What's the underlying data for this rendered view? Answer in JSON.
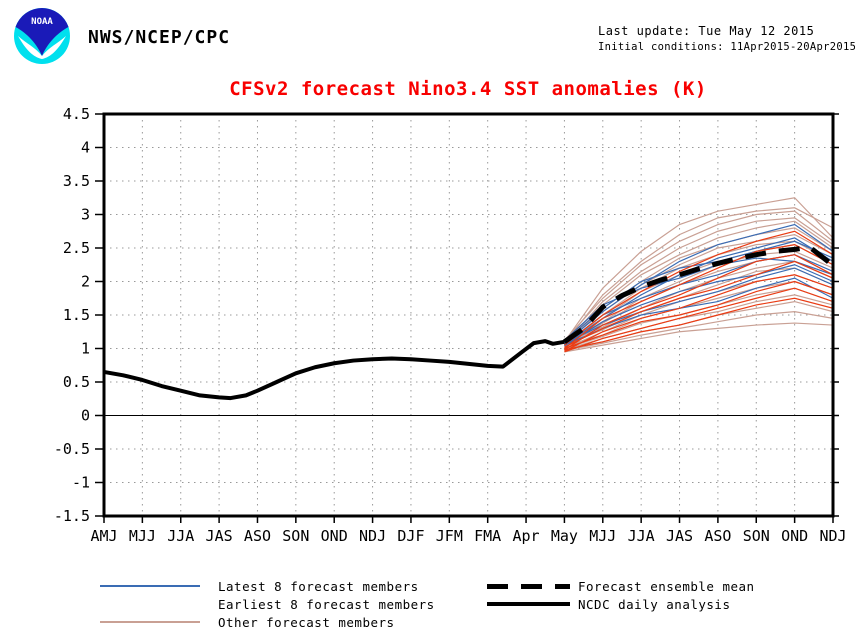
{
  "header": {
    "agency": "NWS/NCEP/CPC",
    "last_update": "Last update: Tue May 12 2015",
    "initial_conditions": "Initial conditions: 11Apr2015-20Apr2015",
    "logo_text": "NOAA",
    "logo_colors": {
      "blue": "#1a1ab8",
      "cyan": "#00e0ee"
    }
  },
  "title": "CFSv2 forecast Nino3.4 SST anomalies (K)",
  "title_color": "#f80000",
  "chart_data": {
    "type": "line",
    "title": "CFSv2 forecast Nino3.4 SST anomalies (K)",
    "xlabel": "",
    "ylabel": "",
    "x_labels": [
      "AMJ",
      "MJJ",
      "JJA",
      "JAS",
      "ASO",
      "SON",
      "OND",
      "NDJ",
      "DJF",
      "JFM",
      "FMA",
      "Apr",
      "May",
      "MJJ",
      "JJA",
      "JAS",
      "ASO",
      "SON",
      "OND",
      "NDJ"
    ],
    "ylim": [
      -1.5,
      4.5
    ],
    "ytick_step": 0.5,
    "grid": true,
    "zero_line": true,
    "forecast_start_index": 12,
    "axis_color": "#000000",
    "grid_color": "#999999",
    "member_colors": {
      "latest": "#3a6cb4",
      "earliest": "#ea3c14",
      "other": "#c9a094"
    },
    "series": {
      "ncdc_daily_analysis": {
        "name": "NCDC daily analysis",
        "color": "#000000",
        "style": "solid-thick",
        "points": [
          [
            0,
            0.65
          ],
          [
            0.5,
            0.6
          ],
          [
            1,
            0.53
          ],
          [
            1.5,
            0.44
          ],
          [
            2,
            0.37
          ],
          [
            2.5,
            0.3
          ],
          [
            3,
            0.27
          ],
          [
            3.3,
            0.26
          ],
          [
            3.7,
            0.3
          ],
          [
            4,
            0.37
          ],
          [
            4.5,
            0.5
          ],
          [
            5,
            0.63
          ],
          [
            5.5,
            0.72
          ],
          [
            6,
            0.78
          ],
          [
            6.5,
            0.82
          ],
          [
            7,
            0.84
          ],
          [
            7.5,
            0.85
          ],
          [
            8,
            0.84
          ],
          [
            8.5,
            0.82
          ],
          [
            9,
            0.8
          ],
          [
            9.5,
            0.77
          ],
          [
            10,
            0.74
          ],
          [
            10.4,
            0.73
          ],
          [
            10.9,
            0.95
          ],
          [
            11.2,
            1.08
          ],
          [
            11.5,
            1.11
          ],
          [
            11.7,
            1.07
          ],
          [
            12,
            1.1
          ]
        ]
      },
      "forecast_ensemble_mean": {
        "name": "Forecast ensemble mean",
        "color": "#000000",
        "style": "dashed-thick",
        "points": [
          [
            12,
            1.1
          ],
          [
            12.5,
            1.3
          ],
          [
            13,
            1.62
          ],
          [
            13.5,
            1.79
          ],
          [
            14,
            1.92
          ],
          [
            14.5,
            2.02
          ],
          [
            15,
            2.1
          ],
          [
            15.5,
            2.19
          ],
          [
            16,
            2.27
          ],
          [
            16.5,
            2.34
          ],
          [
            17,
            2.4
          ],
          [
            17.5,
            2.45
          ],
          [
            18,
            2.48
          ],
          [
            18.4,
            2.51
          ],
          [
            19,
            2.24
          ]
        ]
      },
      "member_x": [
        12,
        13,
        14,
        15,
        16,
        17,
        18,
        19
      ],
      "members": [
        {
          "group": "other",
          "values": [
            1.1,
            1.9,
            2.45,
            2.85,
            3.05,
            3.15,
            3.25,
            2.65
          ]
        },
        {
          "group": "other",
          "values": [
            1.08,
            1.8,
            2.3,
            2.7,
            2.95,
            3.05,
            3.1,
            2.8
          ]
        },
        {
          "group": "other",
          "values": [
            1.12,
            1.75,
            2.25,
            2.6,
            2.85,
            3.0,
            3.05,
            2.6
          ]
        },
        {
          "group": "other",
          "values": [
            1.06,
            1.7,
            2.15,
            2.5,
            2.75,
            2.9,
            2.95,
            2.55
          ]
        },
        {
          "group": "other",
          "values": [
            1.1,
            1.65,
            2.1,
            2.4,
            2.65,
            2.8,
            2.9,
            2.5
          ]
        },
        {
          "group": "other",
          "values": [
            1.05,
            1.6,
            2.0,
            2.35,
            2.55,
            2.7,
            2.8,
            2.45
          ]
        },
        {
          "group": "other",
          "values": [
            1.08,
            1.55,
            1.95,
            2.25,
            2.5,
            2.6,
            2.7,
            2.4
          ]
        },
        {
          "group": "other",
          "values": [
            1.04,
            1.5,
            1.9,
            2.2,
            2.4,
            2.55,
            2.6,
            2.3
          ]
        },
        {
          "group": "other",
          "values": [
            1.1,
            1.45,
            1.85,
            2.1,
            2.3,
            2.45,
            2.55,
            2.25
          ]
        },
        {
          "group": "other",
          "values": [
            1.06,
            1.4,
            1.75,
            2.0,
            2.25,
            2.4,
            2.45,
            2.2
          ]
        },
        {
          "group": "other",
          "values": [
            1.02,
            1.38,
            1.7,
            1.95,
            2.15,
            2.3,
            2.4,
            2.1
          ]
        },
        {
          "group": "other",
          "values": [
            1.08,
            1.32,
            1.6,
            1.85,
            2.05,
            2.2,
            2.3,
            2.05
          ]
        },
        {
          "group": "other",
          "values": [
            1.05,
            1.28,
            1.55,
            1.75,
            1.95,
            2.15,
            2.2,
            1.95
          ]
        },
        {
          "group": "other",
          "values": [
            1.0,
            1.25,
            1.5,
            1.7,
            1.85,
            2.0,
            2.1,
            1.9
          ]
        },
        {
          "group": "other",
          "values": [
            1.04,
            1.2,
            1.45,
            1.6,
            1.75,
            1.9,
            2.0,
            1.8
          ]
        },
        {
          "group": "other",
          "values": [
            1.0,
            1.18,
            1.38,
            1.5,
            1.65,
            1.8,
            1.9,
            1.7
          ]
        },
        {
          "group": "other",
          "values": [
            0.98,
            1.15,
            1.3,
            1.45,
            1.55,
            1.7,
            1.8,
            1.65
          ]
        },
        {
          "group": "other",
          "values": [
            1.0,
            1.1,
            1.25,
            1.35,
            1.5,
            1.6,
            1.7,
            1.55
          ]
        },
        {
          "group": "other",
          "values": [
            0.97,
            1.08,
            1.2,
            1.3,
            1.4,
            1.5,
            1.55,
            1.45
          ]
        },
        {
          "group": "other",
          "values": [
            0.95,
            1.05,
            1.15,
            1.25,
            1.3,
            1.35,
            1.38,
            1.35
          ]
        },
        {
          "group": "latest",
          "values": [
            1.08,
            1.55,
            1.95,
            2.3,
            2.55,
            2.7,
            2.85,
            2.45
          ]
        },
        {
          "group": "latest",
          "values": [
            1.05,
            1.45,
            1.8,
            2.1,
            2.35,
            2.5,
            2.65,
            2.3
          ]
        },
        {
          "group": "latest",
          "values": [
            1.1,
            1.6,
            2.0,
            2.2,
            2.3,
            2.45,
            2.6,
            2.35
          ]
        },
        {
          "group": "latest",
          "values": [
            1.06,
            1.5,
            1.75,
            1.95,
            2.1,
            2.3,
            2.4,
            2.15
          ]
        },
        {
          "group": "latest",
          "values": [
            1.12,
            1.65,
            1.9,
            2.05,
            2.25,
            2.35,
            2.3,
            2.1
          ]
        },
        {
          "group": "latest",
          "values": [
            1.04,
            1.4,
            1.65,
            1.85,
            2.0,
            2.1,
            2.25,
            2.0
          ]
        },
        {
          "group": "latest",
          "values": [
            1.08,
            1.35,
            1.55,
            1.7,
            1.85,
            2.05,
            2.2,
            1.95
          ]
        },
        {
          "group": "latest",
          "values": [
            1.05,
            1.3,
            1.5,
            1.6,
            1.7,
            1.9,
            2.05,
            1.75
          ]
        },
        {
          "group": "earliest",
          "values": [
            1.05,
            1.5,
            1.85,
            2.15,
            2.4,
            2.6,
            2.75,
            2.4
          ]
        },
        {
          "group": "earliest",
          "values": [
            1.0,
            1.45,
            1.7,
            1.95,
            2.2,
            2.45,
            2.55,
            2.25
          ]
        },
        {
          "group": "earliest",
          "values": [
            0.98,
            1.35,
            1.6,
            1.8,
            2.05,
            2.3,
            2.4,
            2.1
          ]
        },
        {
          "group": "earliest",
          "values": [
            1.02,
            1.3,
            1.55,
            1.75,
            1.9,
            2.1,
            2.3,
            2.05
          ]
        },
        {
          "group": "earliest",
          "values": [
            0.96,
            1.25,
            1.45,
            1.6,
            1.8,
            2.0,
            2.1,
            1.9
          ]
        },
        {
          "group": "earliest",
          "values": [
            1.0,
            1.2,
            1.4,
            1.5,
            1.65,
            1.85,
            2.0,
            1.8
          ]
        },
        {
          "group": "earliest",
          "values": [
            0.95,
            1.15,
            1.3,
            1.45,
            1.6,
            1.75,
            1.9,
            1.7
          ]
        },
        {
          "group": "earliest",
          "values": [
            0.98,
            1.1,
            1.25,
            1.35,
            1.5,
            1.65,
            1.75,
            1.6
          ]
        }
      ]
    }
  },
  "legend": {
    "left": [
      {
        "label": "Latest 8 forecast members",
        "line_color": "#3a6cb4",
        "line_style": "solid-thin"
      },
      {
        "label": "Earliest 8 forecast members",
        "line_color": null,
        "line_style": "none"
      },
      {
        "label": "Other forecast members",
        "line_color": "#c9a094",
        "line_style": "solid-thin"
      }
    ],
    "right": [
      {
        "label": "Forecast ensemble mean",
        "line_color": "#000000",
        "line_style": "dashed-thick"
      },
      {
        "label": "NCDC daily analysis",
        "line_color": "#000000",
        "line_style": "solid-thick"
      }
    ]
  }
}
